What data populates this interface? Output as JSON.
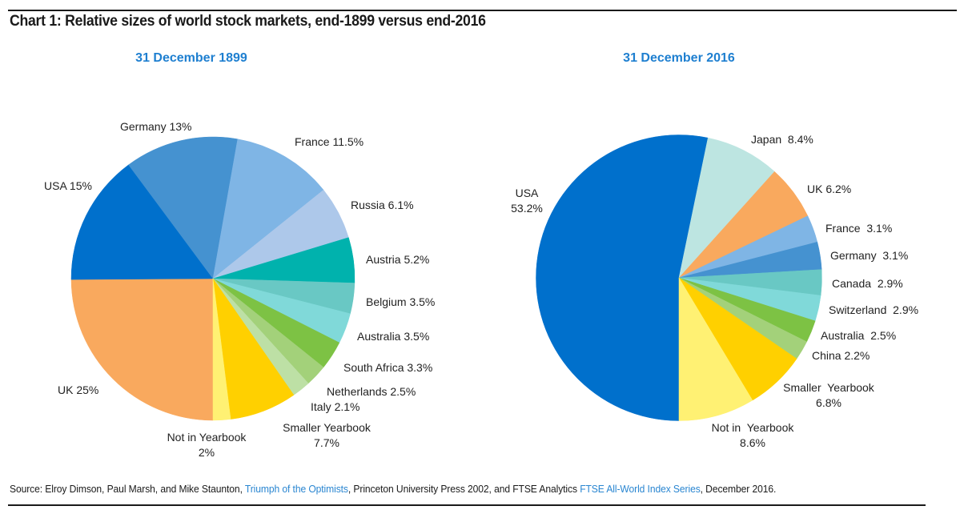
{
  "header": {
    "title": "Chart 1: Relative sizes of world stock markets, end-1899 versus end-2016"
  },
  "footer": {
    "source_prefix": "Source: Elroy Dimson, Paul Marsh, and Mike Staunton, ",
    "source_link1": "Triumph of the Optimists",
    "source_middle": ", Princeton University Press 2002, and FTSE Analytics ",
    "source_link2": "FTSE All-World Index Series",
    "source_suffix": ", December 2016."
  },
  "chart_data": [
    {
      "type": "pie",
      "title": "31 December 1899",
      "start": "bottom",
      "direction": "clockwise",
      "slices": [
        {
          "name": "UK",
          "value": 25,
          "label_lines": [
            "UK 25%"
          ],
          "color": "#f9a95e"
        },
        {
          "name": "USA",
          "value": 15,
          "label_lines": [
            "USA 15%"
          ],
          "color": "#0070cc"
        },
        {
          "name": "Germany",
          "value": 13,
          "label_lines": [
            "Germany 13%"
          ],
          "color": "#4592d0"
        },
        {
          "name": "France",
          "value": 11.5,
          "label_lines": [
            "France 11.5%"
          ],
          "color": "#7fb5e5"
        },
        {
          "name": "Russia",
          "value": 6.1,
          "label_lines": [
            "Russia 6.1%"
          ],
          "color": "#adc8ea"
        },
        {
          "name": "Austria",
          "value": 5.2,
          "label_lines": [
            "Austria 5.2%"
          ],
          "color": "#00b2ad"
        },
        {
          "name": "Belgium",
          "value": 3.5,
          "label_lines": [
            "Belgium 3.5%"
          ],
          "color": "#69c8c4"
        },
        {
          "name": "Australia",
          "value": 3.5,
          "label_lines": [
            "Australia 3.5%"
          ],
          "color": "#80d9d9"
        },
        {
          "name": "South Africa",
          "value": 3.3,
          "label_lines": [
            "South Africa 3.3%"
          ],
          "color": "#7dc244"
        },
        {
          "name": "Netherlands",
          "value": 2.5,
          "label_lines": [
            "Netherlands 2.5%"
          ],
          "color": "#a3d17a"
        },
        {
          "name": "Italy",
          "value": 2.1,
          "label_lines": [
            "Italy 2.1%"
          ],
          "color": "#bde0a5"
        },
        {
          "name": "Smaller Yearbook",
          "value": 7.7,
          "label_lines": [
            "Smaller Yearbook",
            "7.7%"
          ],
          "color": "#ffd000"
        },
        {
          "name": "Not in Yearbook",
          "value": 2,
          "label_lines": [
            "Not in Yearbook",
            "2%"
          ],
          "color": "#fff173"
        }
      ]
    },
    {
      "type": "pie",
      "title": "31 December 2016",
      "start": "bottom",
      "direction": "clockwise",
      "slices": [
        {
          "name": "USA",
          "value": 53.2,
          "label_lines": [
            "USA",
            "53.2%"
          ],
          "color": "#0070cc"
        },
        {
          "name": "Japan",
          "value": 8.4,
          "label_lines": [
            "Japan  8.4%"
          ],
          "color": "#bde5e1"
        },
        {
          "name": "UK",
          "value": 6.2,
          "label_lines": [
            "UK 6.2%"
          ],
          "color": "#f9a95e"
        },
        {
          "name": "France",
          "value": 3.1,
          "label_lines": [
            "France  3.1%"
          ],
          "color": "#7fb5e5"
        },
        {
          "name": "Germany",
          "value": 3.1,
          "label_lines": [
            "Germany  3.1%"
          ],
          "color": "#4592d0"
        },
        {
          "name": "Canada",
          "value": 2.9,
          "label_lines": [
            "Canada  2.9%"
          ],
          "color": "#69c8c4"
        },
        {
          "name": "Switzerland",
          "value": 2.9,
          "label_lines": [
            "Switzerland  2.9%"
          ],
          "color": "#80d9d9"
        },
        {
          "name": "Australia",
          "value": 2.5,
          "label_lines": [
            "Australia  2.5%"
          ],
          "color": "#7dc244"
        },
        {
          "name": "China",
          "value": 2.2,
          "label_lines": [
            "China 2.2%"
          ],
          "color": "#a3d17a"
        },
        {
          "name": "Smaller Yearbook",
          "value": 6.8,
          "label_lines": [
            "Smaller  Yearbook",
            "6.8%"
          ],
          "color": "#ffd000"
        },
        {
          "name": "Not in Yearbook",
          "value": 8.6,
          "label_lines": [
            "Not in  Yearbook",
            "8.6%"
          ],
          "color": "#fff173"
        }
      ]
    }
  ]
}
